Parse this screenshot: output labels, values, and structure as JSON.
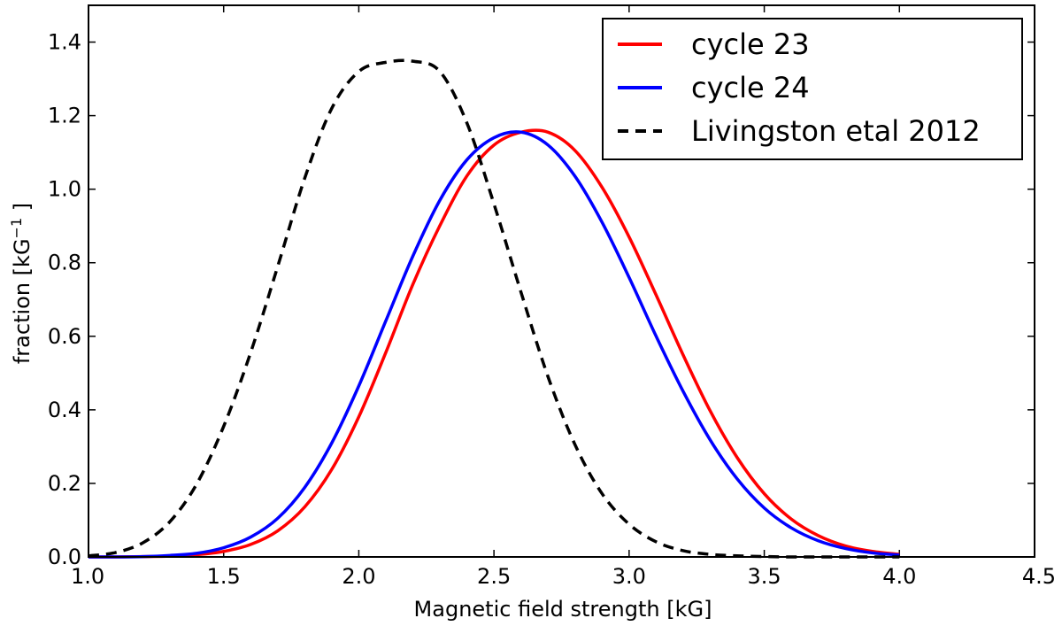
{
  "chart_data": {
    "type": "line",
    "title": "",
    "xlabel": "Magnetic field strength [kG]",
    "ylabel": {
      "prefix": "fraction [kG",
      "superscript": "−1",
      "suffix": " ]"
    },
    "xlim": [
      1.0,
      4.5
    ],
    "ylim": [
      0.0,
      1.5
    ],
    "xticks": [
      "1.0",
      "1.5",
      "2.0",
      "2.5",
      "3.0",
      "3.5",
      "4.0",
      "4.5"
    ],
    "yticks": [
      "0.0",
      "0.2",
      "0.4",
      "0.6",
      "0.8",
      "1.0",
      "1.2",
      "1.4"
    ],
    "grid": false,
    "legend_position": "top-right",
    "x": [
      1.0,
      1.1,
      1.2,
      1.3,
      1.4,
      1.5,
      1.6,
      1.7,
      1.8,
      1.9,
      2.0,
      2.1,
      2.2,
      2.3,
      2.4,
      2.5,
      2.6,
      2.7,
      2.8,
      2.9,
      3.0,
      3.1,
      3.2,
      3.3,
      3.4,
      3.5,
      3.6,
      3.7,
      3.8,
      3.9,
      4.0
    ],
    "series": [
      {
        "name": "cycle 23",
        "color": "#ff0000",
        "style": "solid",
        "values": [
          0.0,
          0.0,
          0.001,
          0.002,
          0.006,
          0.015,
          0.034,
          0.071,
          0.136,
          0.238,
          0.381,
          0.556,
          0.741,
          0.901,
          1.036,
          1.12,
          1.155,
          1.155,
          1.105,
          1.005,
          0.87,
          0.712,
          0.549,
          0.397,
          0.27,
          0.172,
          0.103,
          0.058,
          0.03,
          0.015,
          0.007
        ]
      },
      {
        "name": "cycle 24",
        "color": "#0000ff",
        "style": "solid",
        "values": [
          0.0,
          0.0,
          0.001,
          0.004,
          0.01,
          0.025,
          0.054,
          0.105,
          0.189,
          0.31,
          0.465,
          0.642,
          0.818,
          0.97,
          1.08,
          1.14,
          1.155,
          1.12,
          1.035,
          0.91,
          0.76,
          0.6,
          0.45,
          0.318,
          0.212,
          0.133,
          0.079,
          0.044,
          0.023,
          0.011,
          0.005
        ]
      },
      {
        "name": "Livingston etal 2012",
        "color": "#000000",
        "style": "dashed",
        "values": [
          0.003,
          0.012,
          0.038,
          0.095,
          0.198,
          0.355,
          0.556,
          0.79,
          1.03,
          1.22,
          1.32,
          1.345,
          1.348,
          1.32,
          1.18,
          0.96,
          0.72,
          0.49,
          0.305,
          0.172,
          0.089,
          0.041,
          0.017,
          0.007,
          0.003,
          0.001,
          0.0,
          0.0,
          0.0,
          0.0,
          0.0
        ]
      }
    ]
  }
}
